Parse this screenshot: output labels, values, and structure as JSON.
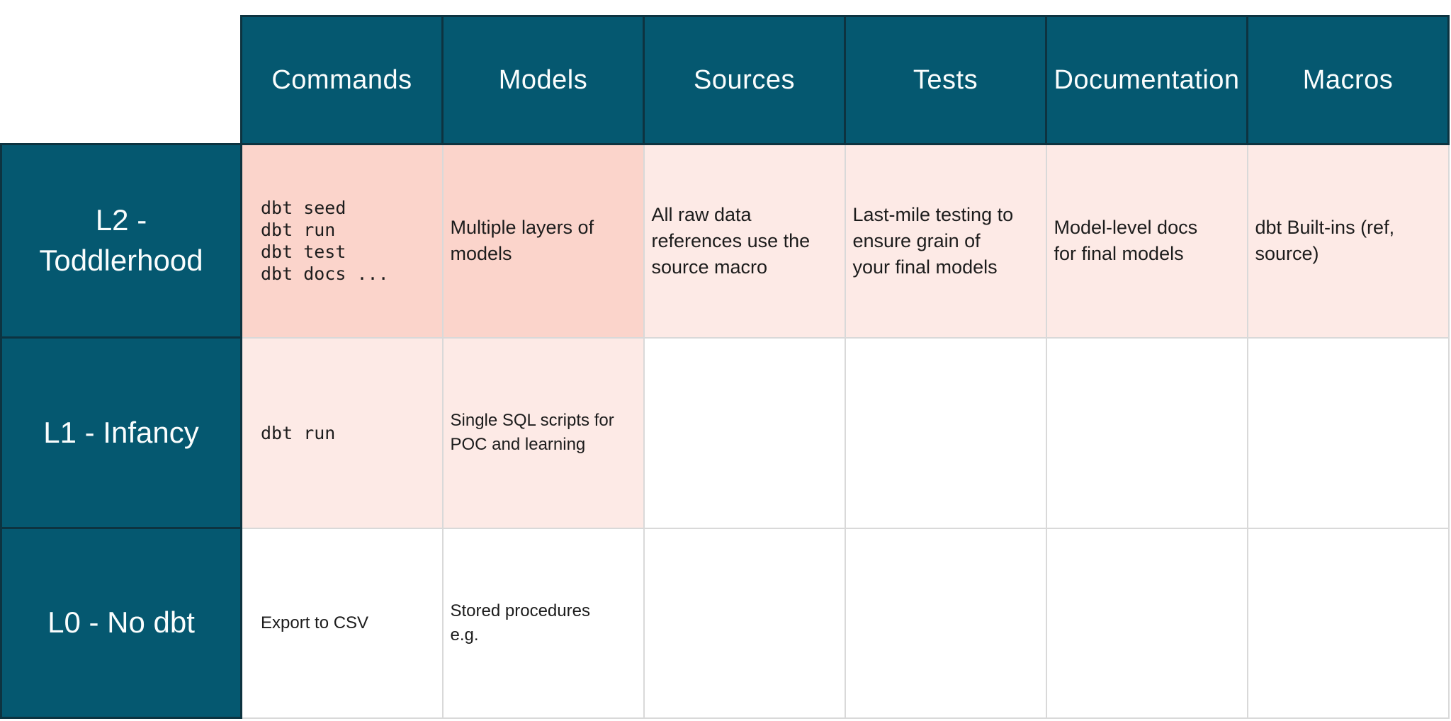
{
  "colors": {
    "teal": "#055870",
    "teal_border": "#0d3340",
    "header_text": "#fafdfd",
    "pink_strong": "#fbd4cb",
    "pink_soft": "#fdeae6",
    "grid_line": "#d9d9d9",
    "ink": "#1c1c1c",
    "page_bg": "#ffffff"
  },
  "table": {
    "columns": [
      {
        "id": "commands",
        "label": "Commands"
      },
      {
        "id": "models",
        "label": "Models"
      },
      {
        "id": "sources",
        "label": "Sources"
      },
      {
        "id": "tests",
        "label": "Tests"
      },
      {
        "id": "documentation",
        "label": "Documentation"
      },
      {
        "id": "macros",
        "label": "Macros"
      }
    ],
    "rows": [
      {
        "id": "l2",
        "label": "L2 - Toddlerhood",
        "cells": [
          {
            "col": "commands",
            "tone": "strong",
            "code": true,
            "lines": [
              "dbt seed",
              "dbt run",
              "dbt test",
              "dbt docs ..."
            ]
          },
          {
            "col": "models",
            "tone": "strong",
            "code": false,
            "lines": [
              "Multiple layers of",
              "models"
            ]
          },
          {
            "col": "sources",
            "tone": "soft",
            "code": false,
            "lines": [
              "All raw data",
              "references use the",
              "source macro"
            ]
          },
          {
            "col": "tests",
            "tone": "soft",
            "code": false,
            "lines": [
              "Last-mile testing to",
              "ensure grain of",
              "your final models"
            ]
          },
          {
            "col": "documentation",
            "tone": "soft",
            "code": false,
            "lines": [
              "Model-level docs",
              "for final models"
            ]
          },
          {
            "col": "macros",
            "tone": "soft",
            "code": false,
            "lines": [
              "dbt Built-ins (ref,",
              "source)"
            ]
          }
        ]
      },
      {
        "id": "l1",
        "label": "L1 - Infancy",
        "cells": [
          {
            "col": "commands",
            "tone": "soft",
            "code": true,
            "lines": [
              "dbt run"
            ]
          },
          {
            "col": "models",
            "tone": "soft",
            "code": false,
            "lines": [
              "Single SQL scripts for",
              "POC and learning"
            ]
          },
          {
            "col": "sources",
            "tone": "none",
            "code": false,
            "lines": []
          },
          {
            "col": "tests",
            "tone": "none",
            "code": false,
            "lines": []
          },
          {
            "col": "documentation",
            "tone": "none",
            "code": false,
            "lines": []
          },
          {
            "col": "macros",
            "tone": "none",
            "code": false,
            "lines": []
          }
        ]
      },
      {
        "id": "l0",
        "label": "L0 - No dbt",
        "cells": [
          {
            "col": "commands",
            "tone": "none",
            "code": false,
            "lines": [
              "Export to CSV"
            ]
          },
          {
            "col": "models",
            "tone": "none",
            "code": false,
            "lines": [
              "Stored procedures",
              "e.g."
            ]
          },
          {
            "col": "sources",
            "tone": "none",
            "code": false,
            "lines": []
          },
          {
            "col": "tests",
            "tone": "none",
            "code": false,
            "lines": []
          },
          {
            "col": "documentation",
            "tone": "none",
            "code": false,
            "lines": []
          },
          {
            "col": "macros",
            "tone": "none",
            "code": false,
            "lines": []
          }
        ]
      }
    ]
  }
}
